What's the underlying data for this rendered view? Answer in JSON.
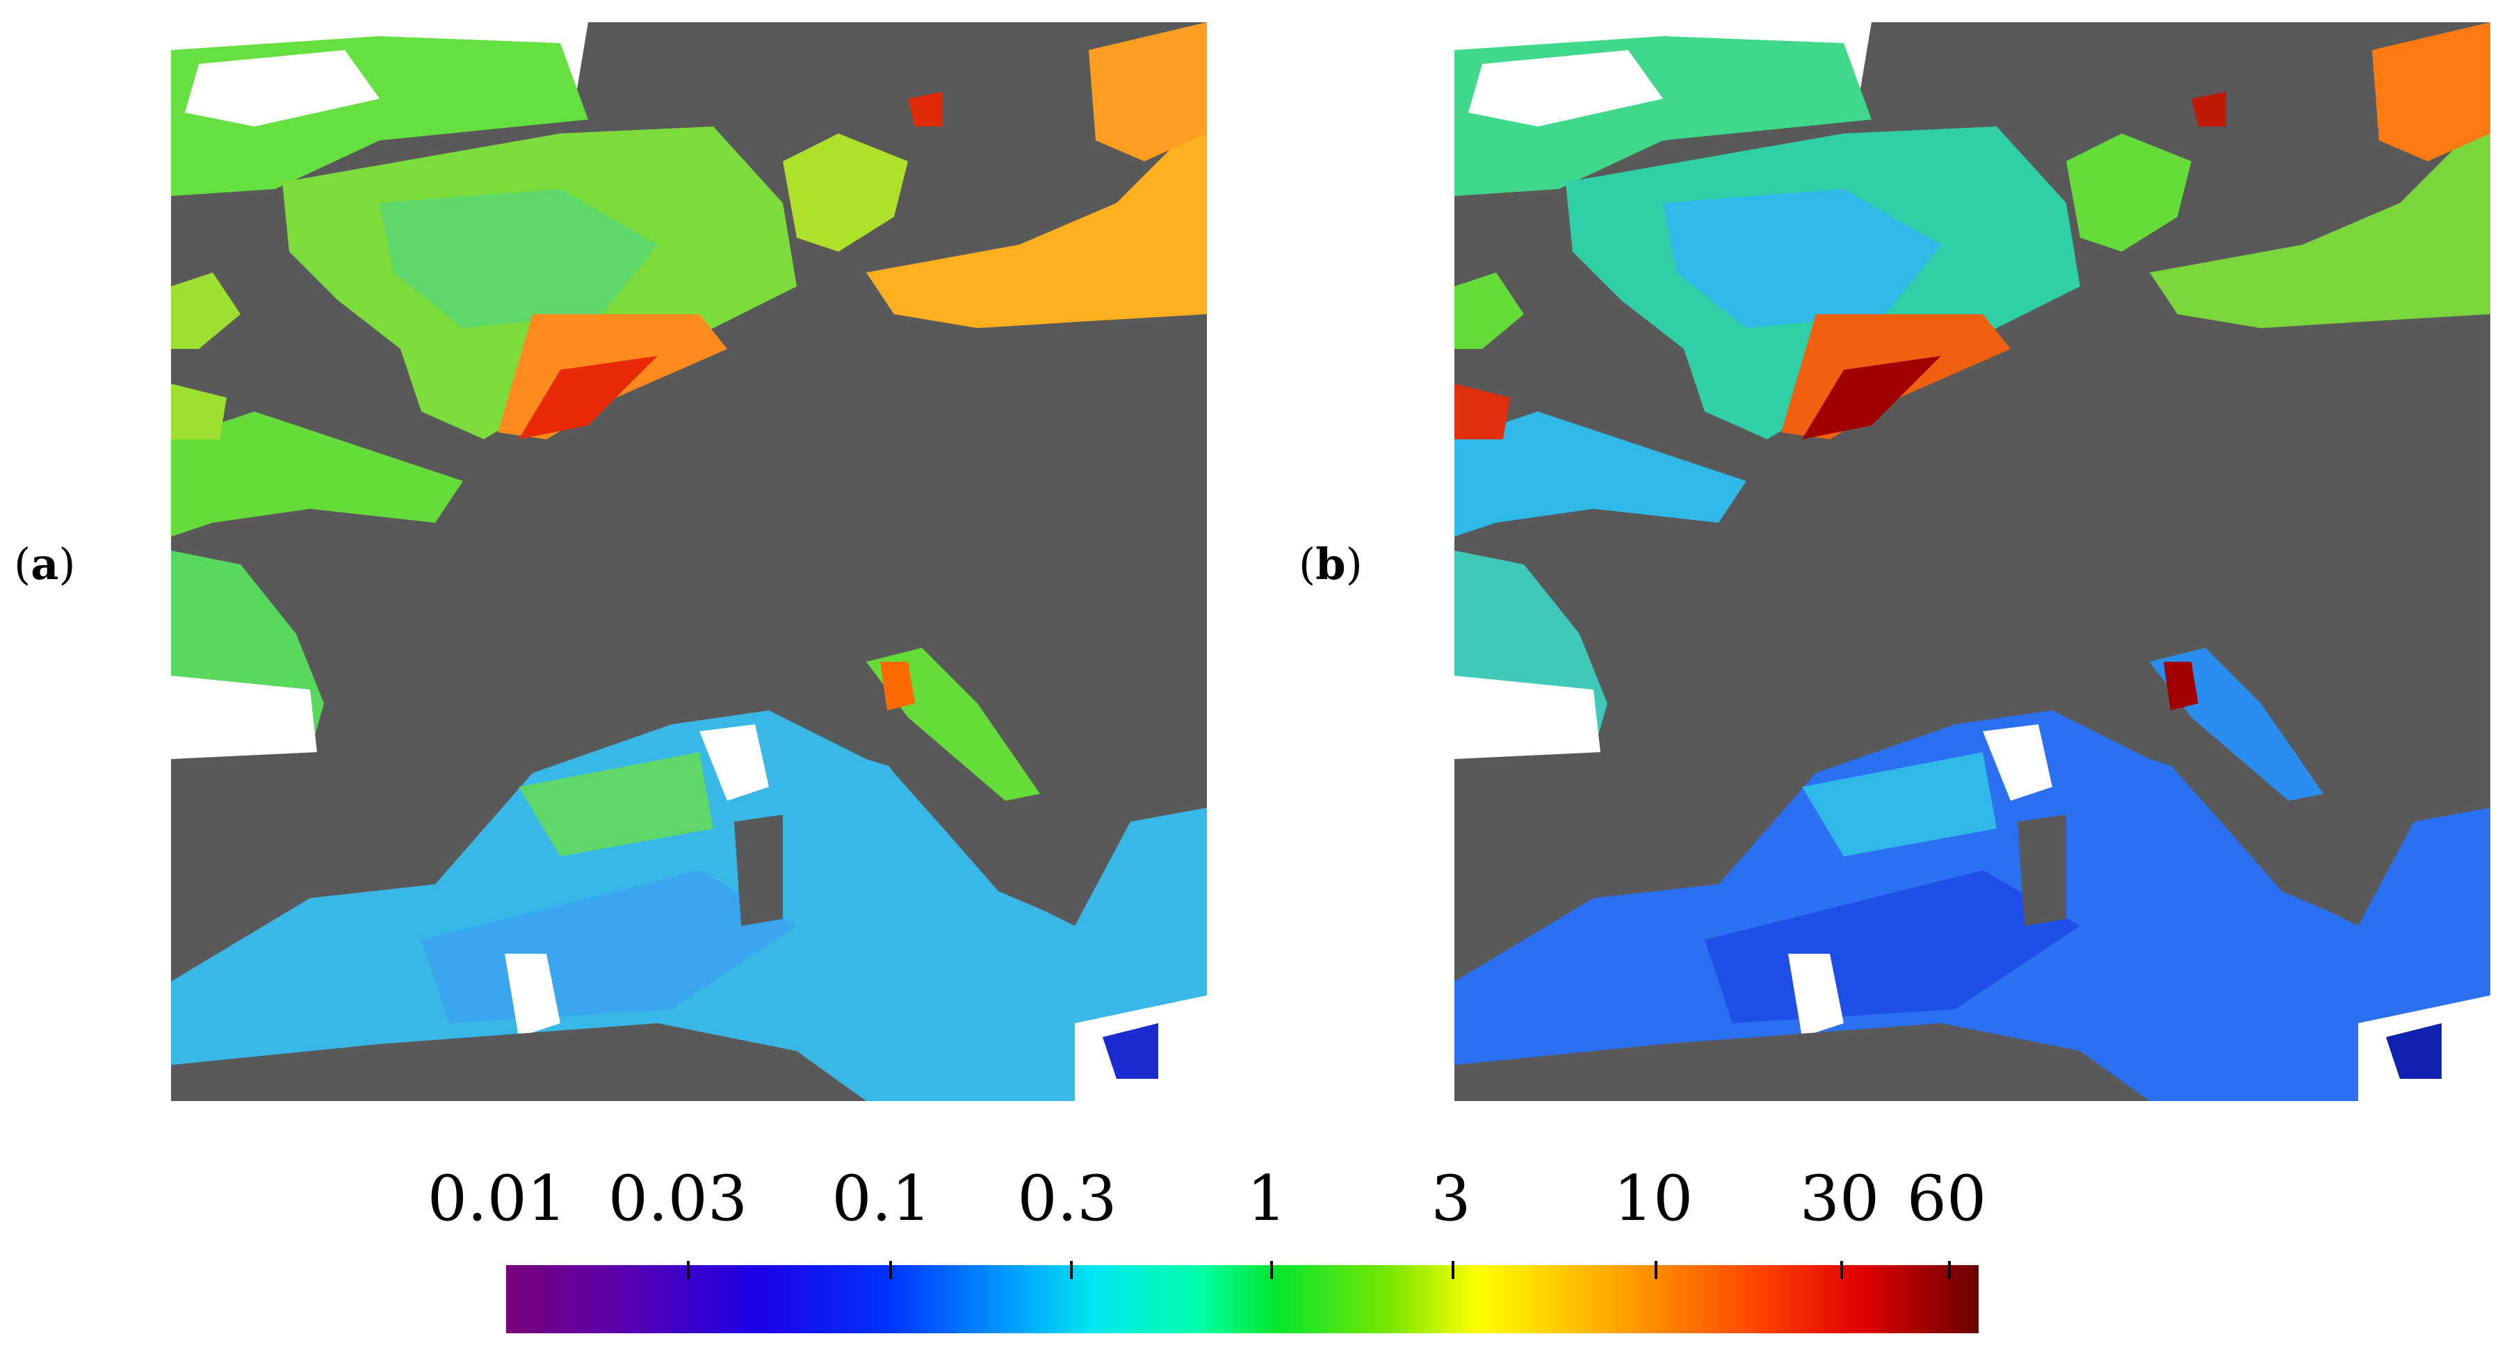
{
  "panels": [
    {
      "label": "(a)",
      "letter": "a"
    },
    {
      "label": "(b)",
      "letter": "b"
    }
  ],
  "colorbar": {
    "tick_labels": [
      "0.01",
      "0.03",
      "0.1",
      "0.3",
      "1",
      "3",
      "10",
      "30",
      "60"
    ],
    "colors": [
      "#7a007a",
      "#1c00e8",
      "#0099ff",
      "#00e8f0",
      "#00e632",
      "#ffff00",
      "#ffaa00",
      "#ff4400",
      "#6a0000"
    ]
  },
  "map_colors": {
    "land": "#595959",
    "no_data": "#ffffff"
  }
}
